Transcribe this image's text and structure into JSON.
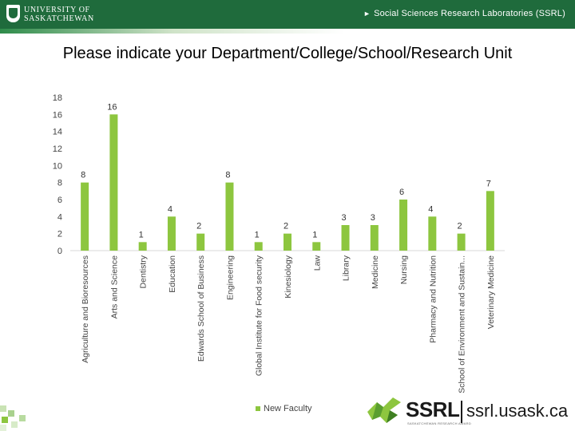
{
  "header": {
    "university_line1": "UNIVERSITY OF",
    "university_line2": "SASKATCHEWAN",
    "lab_name": "Social Sciences Research Laboratories (SSRL)"
  },
  "footer": {
    "logo_text": "SSRL",
    "logo_subtitle": "SASKATCHEWAN RESEARCH AWARD",
    "url": "ssrl.usask.ca"
  },
  "colors": {
    "bar": "#8dc63f",
    "header_green": "#1f6b3c",
    "grid": "#d9d9d9",
    "axis_text": "#444444"
  },
  "chart_data": {
    "type": "bar",
    "title": "Please indicate your Department/College/School/Research Unit",
    "categories": [
      "Agriculture and Bioresources",
      "Arts and Science",
      "Dentistry",
      "Education",
      "Edwards School of Business",
      "Engineering",
      "Global Institute for Food security",
      "Kinesiology",
      "Law",
      "Library",
      "Medicine",
      "Nursing",
      "Pharmacy and Nutrition",
      "School of Environment and Sustain...",
      "Veterinary Medicine"
    ],
    "series": [
      {
        "name": "New Faculty",
        "values": [
          8,
          16,
          1,
          4,
          2,
          8,
          1,
          2,
          1,
          3,
          3,
          6,
          4,
          2,
          7
        ]
      }
    ],
    "yticks": [
      0,
      2,
      4,
      6,
      8,
      10,
      12,
      14,
      16,
      18
    ],
    "ylim": [
      0,
      18
    ],
    "xlabel": "",
    "ylabel": "",
    "grid": false,
    "legend_position": "bottom"
  }
}
